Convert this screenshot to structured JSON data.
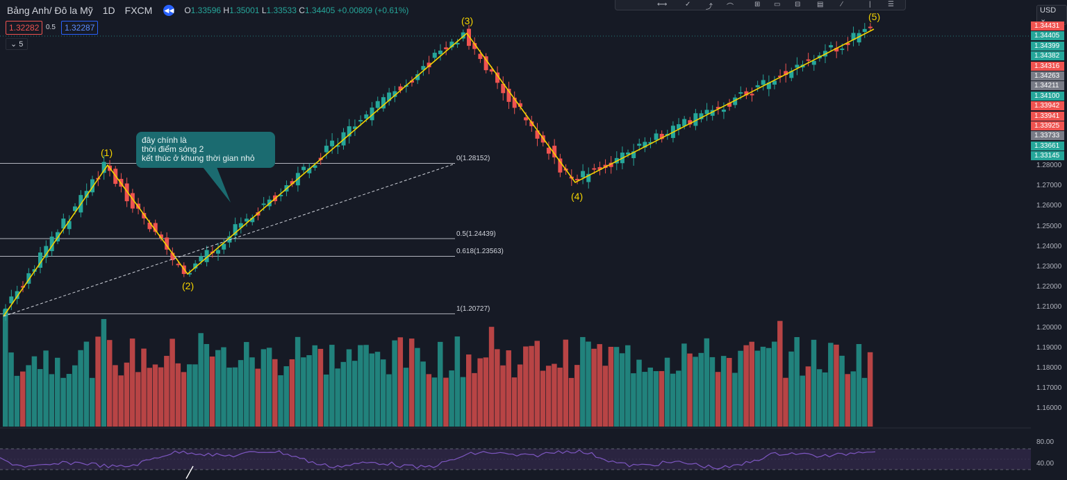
{
  "header": {
    "symbol": "Bảng Anh/ Đô la Mỹ",
    "timeframe": "1D",
    "exchange": "FXCM",
    "ohlc": {
      "o_label": "O",
      "o": "1.33596",
      "h_label": "H",
      "h": "1.35001",
      "l_label": "L",
      "l": "1.33533",
      "c_label": "C",
      "c": "1.34405",
      "change": "+0.00809 (+0.61%)"
    }
  },
  "trade": {
    "sell_price": "1.32282",
    "spread": "0.5",
    "buy_price": "1.32287",
    "lot": "5"
  },
  "currency": "USD",
  "colors": {
    "background": "#161a25",
    "up": "#26a69a",
    "down": "#ef5350",
    "wave": "#f5d400",
    "rsi": "#7e57c2"
  },
  "annotation": {
    "line1": "đây chính là",
    "line2": "thời điểm sóng 2",
    "line3": "kết thúc ở khung thời gian nhỏ"
  },
  "waves": [
    "(1)",
    "(2)",
    "(3)",
    "(4)",
    "(5)"
  ],
  "fib_levels": [
    {
      "label": "0(1.28152)",
      "price": 1.28152
    },
    {
      "label": "0.5(1.24439)",
      "price": 1.24439
    },
    {
      "label": "0.618(1.23563)",
      "price": 1.23563
    },
    {
      "label": "1(1.20727)",
      "price": 1.20727
    }
  ],
  "price_axis": {
    "ticks": [
      "1.28000",
      "1.27000",
      "1.26000",
      "1.25000",
      "1.24000",
      "1.23000",
      "1.22000",
      "1.21000",
      "1.20000",
      "1.19000",
      "1.18000",
      "1.17000",
      "1.16000"
    ],
    "labels": [
      {
        "text": "1.34431",
        "color": "#ef5350"
      },
      {
        "text": "1.34405",
        "color": "#26a69a"
      },
      {
        "text": "1.34399",
        "color": "#26a69a"
      },
      {
        "text": "1.34382",
        "color": "#26a69a"
      },
      {
        "text": "1.34316",
        "color": "#ef5350"
      },
      {
        "text": "1.34263",
        "color": "#787b86"
      },
      {
        "text": "1.34211",
        "color": "#787b86"
      },
      {
        "text": "1.34100",
        "color": "#26a69a"
      },
      {
        "text": "1.33942",
        "color": "#ef5350"
      },
      {
        "text": "1.33941",
        "color": "#ef5350"
      },
      {
        "text": "1.33925",
        "color": "#ef5350"
      },
      {
        "text": "1.33733",
        "color": "#787b86"
      },
      {
        "text": "1.33661",
        "color": "#26a69a"
      },
      {
        "text": "1.33145",
        "color": "#26a69a"
      }
    ]
  },
  "rsi_axis": {
    "upper": "80.00",
    "lower": "40.00"
  }
}
